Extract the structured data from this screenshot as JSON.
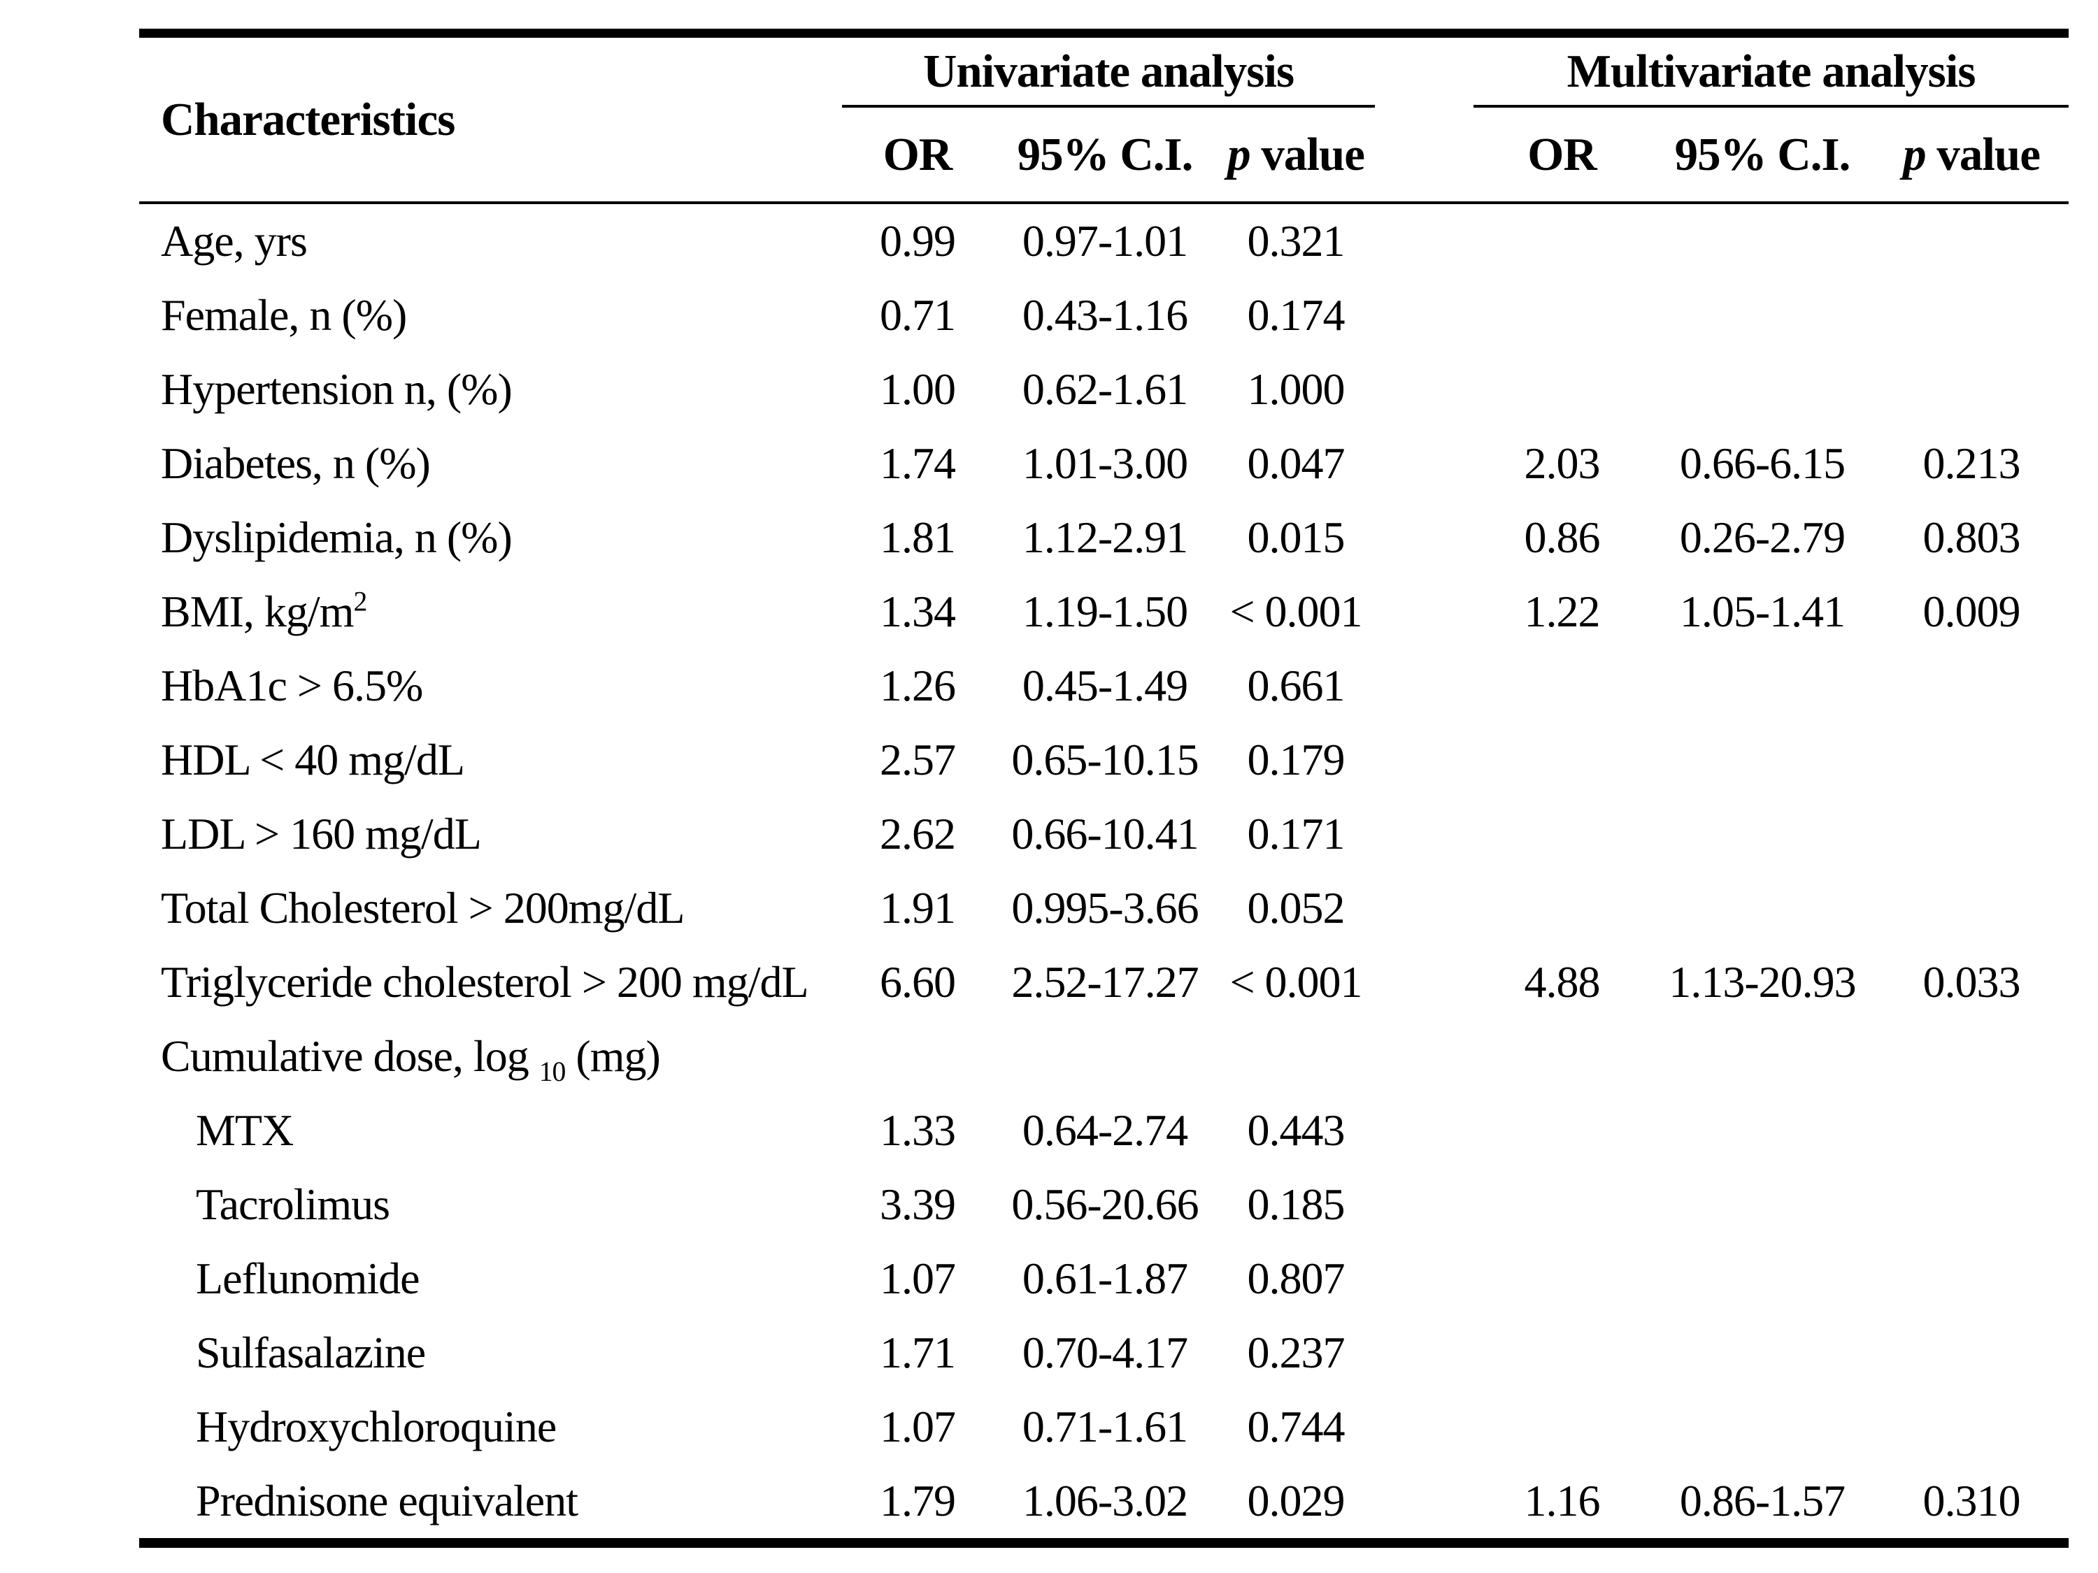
{
  "colors": {
    "text": "#000000",
    "background": "#ffffff",
    "rule": "#000000"
  },
  "table": {
    "characteristics_header": "Characteristics",
    "group1": "Univariate analysis",
    "group2": "Multivariate analysis",
    "sub": {
      "or": "OR",
      "ci": "95% C.I.",
      "p_italic": "p",
      "p_rest": " value"
    }
  },
  "rows": [
    {
      "label": "Age, yrs",
      "uni_or": "0.99",
      "uni_ci": "0.97-1.01",
      "uni_p": "0.321",
      "m_or": "",
      "m_ci": "",
      "m_p": ""
    },
    {
      "label": "Female, n (%)",
      "uni_or": "0.71",
      "uni_ci": "0.43-1.16",
      "uni_p": "0.174",
      "m_or": "",
      "m_ci": "",
      "m_p": ""
    },
    {
      "label": "Hypertension n, (%)",
      "uni_or": "1.00",
      "uni_ci": "0.62-1.61",
      "uni_p": "1.000",
      "m_or": "",
      "m_ci": "",
      "m_p": ""
    },
    {
      "label": "Diabetes, n (%)",
      "uni_or": "1.74",
      "uni_ci": "1.01-3.00",
      "uni_p": "0.047",
      "m_or": "2.03",
      "m_ci": "0.66-6.15",
      "m_p": "0.213"
    },
    {
      "label": "Dyslipidemia, n (%)",
      "uni_or": "1.81",
      "uni_ci": "1.12-2.91",
      "uni_p": "0.015",
      "m_or": "0.86",
      "m_ci": "0.26-2.79",
      "m_p": "0.803"
    },
    {
      "label": "BMI, kg/m",
      "sup": "2",
      "uni_or": "1.34",
      "uni_ci": "1.19-1.50",
      "uni_p": "< 0.001",
      "m_or": "1.22",
      "m_ci": "1.05-1.41",
      "m_p": "0.009"
    },
    {
      "label": "HbA1c > 6.5%",
      "uni_or": "1.26",
      "uni_ci": "0.45-1.49",
      "uni_p": "0.661",
      "m_or": "",
      "m_ci": "",
      "m_p": ""
    },
    {
      "label": "HDL < 40 mg/dL",
      "uni_or": "2.57",
      "uni_ci": "0.65-10.15",
      "uni_p": "0.179",
      "m_or": "",
      "m_ci": "",
      "m_p": ""
    },
    {
      "label": "LDL > 160 mg/dL",
      "uni_or": "2.62",
      "uni_ci": "0.66-10.41",
      "uni_p": "0.171",
      "m_or": "",
      "m_ci": "",
      "m_p": ""
    },
    {
      "label": "Total Cholesterol > 200mg/dL",
      "uni_or": "1.91",
      "uni_ci": "0.995-3.66",
      "uni_p": "0.052",
      "m_or": "",
      "m_ci": "",
      "m_p": ""
    },
    {
      "label": "Triglyceride cholesterol > 200 mg/dL",
      "uni_or": "6.60",
      "uni_ci": "2.52-17.27",
      "uni_p": "< 0.001",
      "m_or": "4.88",
      "m_ci": "1.13-20.93",
      "m_p": "0.033"
    },
    {
      "label": "Cumulative dose, log ",
      "sub": "10",
      "label2": " (mg)",
      "uni_or": "",
      "uni_ci": "",
      "uni_p": "",
      "m_or": "",
      "m_ci": "",
      "m_p": ""
    },
    {
      "label": "MTX",
      "indent": true,
      "uni_or": "1.33",
      "uni_ci": "0.64-2.74",
      "uni_p": "0.443",
      "m_or": "",
      "m_ci": "",
      "m_p": ""
    },
    {
      "label": "Tacrolimus",
      "indent": true,
      "uni_or": "3.39",
      "uni_ci": "0.56-20.66",
      "uni_p": "0.185",
      "m_or": "",
      "m_ci": "",
      "m_p": ""
    },
    {
      "label": "Leflunomide",
      "indent": true,
      "uni_or": "1.07",
      "uni_ci": "0.61-1.87",
      "uni_p": "0.807",
      "m_or": "",
      "m_ci": "",
      "m_p": ""
    },
    {
      "label": "Sulfasalazine",
      "indent": true,
      "uni_or": "1.71",
      "uni_ci": "0.70-4.17",
      "uni_p": "0.237",
      "m_or": "",
      "m_ci": "",
      "m_p": ""
    },
    {
      "label": "Hydroxychloroquine",
      "indent": true,
      "uni_or": "1.07",
      "uni_ci": "0.71-1.61",
      "uni_p": "0.744",
      "m_or": "",
      "m_ci": "",
      "m_p": ""
    },
    {
      "label": "Prednisone equivalent",
      "indent": true,
      "uni_or": "1.79",
      "uni_ci": "1.06-3.02",
      "uni_p": "0.029",
      "m_or": "1.16",
      "m_ci": "0.86-1.57",
      "m_p": "0.310"
    }
  ]
}
